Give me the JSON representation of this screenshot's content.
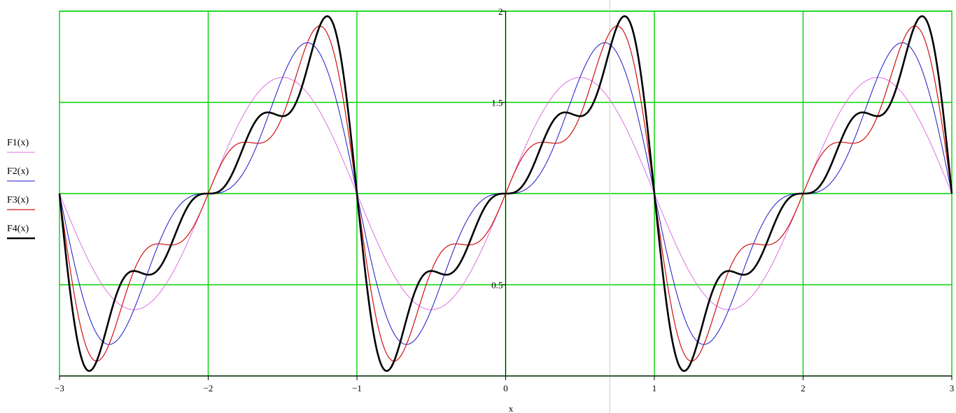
{
  "chart_data": {
    "type": "line",
    "title": "",
    "xlabel": "x",
    "ylabel": "",
    "xlim": [
      -3,
      3
    ],
    "ylim": [
      0,
      2
    ],
    "grid": true,
    "grid_color": "#00d200",
    "x_ticks": [
      -3,
      -2,
      -1,
      0,
      1,
      2,
      3
    ],
    "x_tick_labels": [
      "−3",
      "−2",
      "−1",
      "0",
      "1",
      "2",
      "3"
    ],
    "y_ticks": [
      0.5,
      1,
      1.5,
      2
    ],
    "y_tick_labels": [
      "0.5",
      "",
      "1.5",
      "2"
    ],
    "legend_position": "left",
    "series": [
      {
        "name": "F1(x)",
        "color": "#e070e0",
        "width": 1,
        "terms": 1
      },
      {
        "name": "F2(x)",
        "color": "#1818c8",
        "width": 1,
        "terms": 2
      },
      {
        "name": "F3(x)",
        "color": "#d01010",
        "width": 1.2,
        "terms": 3
      },
      {
        "name": "F4(x)",
        "color": "#000000",
        "width": 2.6,
        "terms": 4
      }
    ],
    "cursor_x": 0.7
  }
}
